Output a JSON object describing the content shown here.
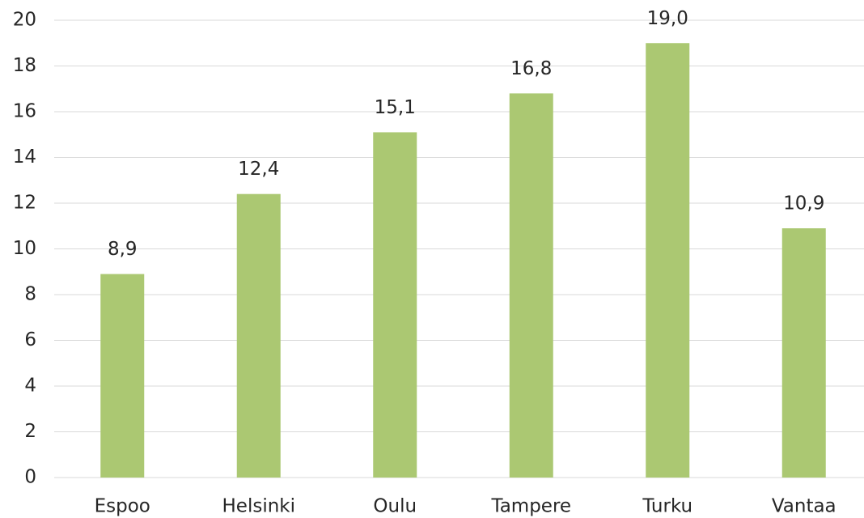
{
  "chart_data": {
    "type": "bar",
    "categories": [
      "Espoo",
      "Helsinki",
      "Oulu",
      "Tampere",
      "Turku",
      "Vantaa"
    ],
    "values": [
      8.9,
      12.4,
      15.1,
      16.8,
      19.0,
      10.9
    ],
    "value_labels": [
      "8,9",
      "12,4",
      "15,1",
      "16,8",
      "19,0",
      "10,9"
    ],
    "color": "#abc872",
    "ylim": [
      0,
      20
    ],
    "yticks": [
      0,
      2,
      4,
      6,
      8,
      10,
      12,
      14,
      16,
      18,
      20
    ],
    "grid": true
  }
}
